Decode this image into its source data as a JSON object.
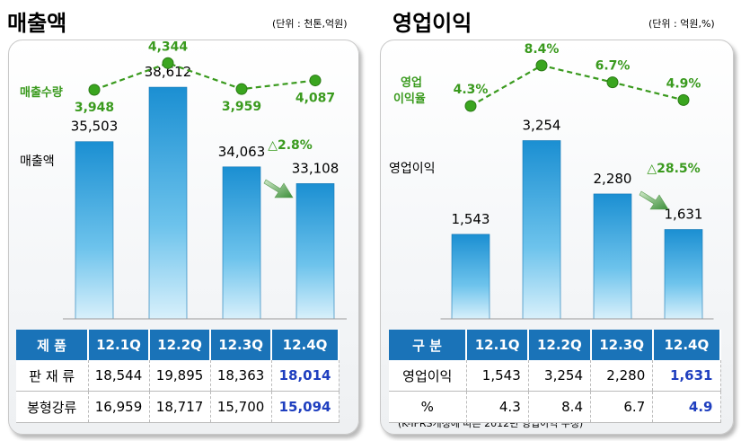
{
  "left": {
    "title": "매출액",
    "unit": "(단위 : 천톤,억원)",
    "line_label": "매출수량",
    "bar_label": "매출액",
    "change_label": "△2.8%",
    "table": {
      "header": [
        "제  품",
        "12.1Q",
        "12.2Q",
        "12.3Q",
        "12.4Q"
      ],
      "rows": [
        [
          "판 재 류",
          "18,544",
          "19,895",
          "18,363",
          "18,014"
        ],
        [
          "봉형강류",
          "16,959",
          "18,717",
          "15,700",
          "15,094"
        ]
      ]
    }
  },
  "right": {
    "title": "영업이익",
    "unit": "(단위 : 억원,%)",
    "line_label_1": "영업",
    "line_label_2": "이익율",
    "bar_label": "영업이익",
    "change_label": "△28.5%",
    "table": {
      "header": [
        "구  분",
        "12.1Q",
        "12.2Q",
        "12.3Q",
        "12.4Q"
      ],
      "rows": [
        [
          "영업이익",
          "1,543",
          "3,254",
          "2,280",
          "1,631"
        ],
        [
          "%",
          "4.3",
          "8.4",
          "6.7",
          "4.9"
        ]
      ]
    },
    "footnote": "(K-IFRS개정에 따른 2012년 영업이익 수정)"
  },
  "chart_data": [
    {
      "type": "bar",
      "categories": [
        "12.1Q",
        "12.2Q",
        "12.3Q",
        "12.4Q"
      ],
      "series": [
        {
          "name": "매출액",
          "values": [
            35503,
            38612,
            34063,
            33108
          ],
          "labels": [
            "35,503",
            "38,612",
            "34,063",
            "33,108"
          ]
        },
        {
          "name": "매출수량",
          "type": "line",
          "values": [
            3948,
            4344,
            3959,
            4087
          ],
          "labels": [
            "3,948",
            "4,344",
            "3,959",
            "4,087"
          ]
        }
      ]
    },
    {
      "type": "bar",
      "categories": [
        "12.1Q",
        "12.2Q",
        "12.3Q",
        "12.4Q"
      ],
      "series": [
        {
          "name": "영업이익",
          "values": [
            1543,
            3254,
            2280,
            1631
          ],
          "labels": [
            "1,543",
            "3,254",
            "2,280",
            "1,631"
          ]
        },
        {
          "name": "영업이익율",
          "type": "line",
          "values": [
            4.3,
            8.4,
            6.7,
            4.9
          ],
          "labels": [
            "4.3%",
            "8.4%",
            "6.7%",
            "4.9%"
          ]
        }
      ]
    }
  ],
  "colors": {
    "bar": "#1e8fd0",
    "line": "#3a9a1e",
    "header": "#1a73b8",
    "highlight": "#1f3fbf"
  }
}
